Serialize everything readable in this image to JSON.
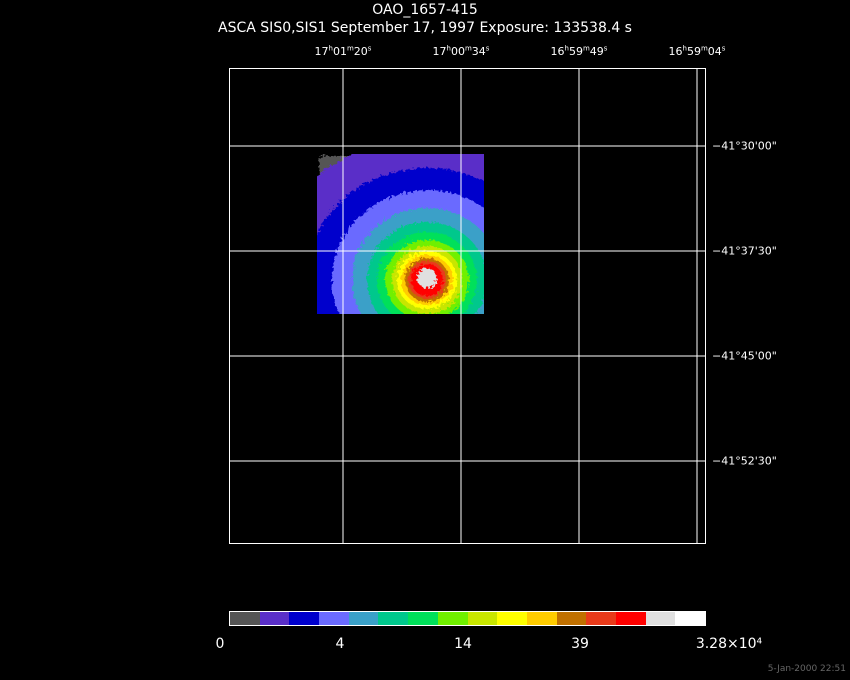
{
  "title": "OAO_1657-415",
  "subtitle": "ASCA SIS0,SIS1 September 17, 1997 Exposure: 133538.4 s",
  "ra_labels": [
    {
      "h": "17",
      "m": "01",
      "s": "20",
      "hu": "h",
      "mu": "m",
      "su": "s"
    },
    {
      "h": "17",
      "m": "00",
      "s": "34",
      "hu": "h",
      "mu": "m",
      "su": "s"
    },
    {
      "h": "16",
      "m": "59",
      "s": "49",
      "hu": "h",
      "mu": "m",
      "su": "s"
    },
    {
      "h": "16",
      "m": "59",
      "s": "04",
      "hu": "h",
      "mu": "m",
      "su": "s"
    }
  ],
  "dec_labels": [
    "−41°30'00\"",
    "−41°37'30\"",
    "−41°45'00\"",
    "−41°52'30\""
  ],
  "colorbar": {
    "colors": [
      "#555555",
      "#5a2fc8",
      "#0000cc",
      "#6b6bff",
      "#3aa0c8",
      "#00c88c",
      "#00e05a",
      "#70f000",
      "#c8e600",
      "#ffff00",
      "#ffcc00",
      "#c07000",
      "#e83a1a",
      "#ff0000",
      "#e0e0e0",
      "#ffffff"
    ],
    "labels": [
      "0",
      "4",
      "14",
      "39",
      "3.28×10⁴"
    ]
  },
  "timestamp": "5-Jan-2000 22:51"
}
